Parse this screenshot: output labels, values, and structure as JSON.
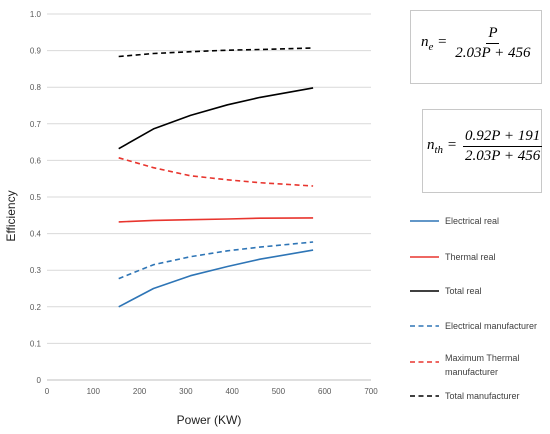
{
  "chart_data": {
    "type": "line",
    "xlabel": "Power (KW)",
    "ylabel": "Efficiency",
    "xlim": [
      0,
      700
    ],
    "ylim": [
      0,
      1.0
    ],
    "xticks": [
      "0",
      "100",
      "200",
      "300",
      "400",
      "500",
      "600",
      "700"
    ],
    "yticks": [
      "0",
      "0.1",
      "0.2",
      "0.3",
      "0.4",
      "0.5",
      "0.6",
      "0.7",
      "0.8",
      "0.9",
      "1.0"
    ],
    "grid": "horizontal",
    "legend_position": "right",
    "series": [
      {
        "name": "Electrical real",
        "color": "#2e75b6",
        "dash": "solid",
        "x": [
          155,
          230,
          310,
          390,
          460,
          575
        ],
        "y": [
          0.2,
          0.25,
          0.285,
          0.31,
          0.33,
          0.355
        ]
      },
      {
        "name": "Thermal real",
        "color": "#e8352e",
        "dash": "solid",
        "x": [
          155,
          230,
          310,
          390,
          460,
          575
        ],
        "y": [
          0.432,
          0.436,
          0.438,
          0.44,
          0.442,
          0.443
        ]
      },
      {
        "name": "Total real",
        "color": "#000000",
        "dash": "solid",
        "x": [
          155,
          230,
          310,
          390,
          460,
          575
        ],
        "y": [
          0.632,
          0.686,
          0.723,
          0.752,
          0.772,
          0.798
        ]
      },
      {
        "name": "Electrical manufacturer",
        "color": "#2e75b6",
        "dash": "dashed",
        "x": [
          155,
          230,
          310,
          390,
          460,
          575
        ],
        "y": [
          0.277,
          0.315,
          0.337,
          0.353,
          0.363,
          0.377
        ]
      },
      {
        "name": "Maximum Thermal manufacturer",
        "color": "#e8352e",
        "dash": "dashed",
        "x": [
          155,
          230,
          310,
          390,
          460,
          575
        ],
        "y": [
          0.607,
          0.58,
          0.558,
          0.547,
          0.539,
          0.53
        ]
      },
      {
        "name": "Total manufacturer",
        "color": "#000000",
        "dash": "dashed",
        "x": [
          155,
          230,
          310,
          390,
          460,
          575
        ],
        "y": [
          0.884,
          0.892,
          0.897,
          0.901,
          0.903,
          0.907
        ]
      }
    ],
    "legend_labels": [
      [
        "Electrical real"
      ],
      [
        "Thermal real"
      ],
      [
        "Total real"
      ],
      [
        "Electrical manufacturer"
      ],
      [
        "Maximum Thermal",
        "manufacturer"
      ],
      [
        "Total manufacturer"
      ]
    ]
  },
  "equations": {
    "electrical": {
      "lhs": "n",
      "sub": "e",
      "numerator": "P",
      "denominator": "2.03P + 456"
    },
    "thermal": {
      "lhs": "n",
      "sub": "th",
      "numerator": "0.92P + 191",
      "denominator": "2.03P + 456"
    }
  }
}
